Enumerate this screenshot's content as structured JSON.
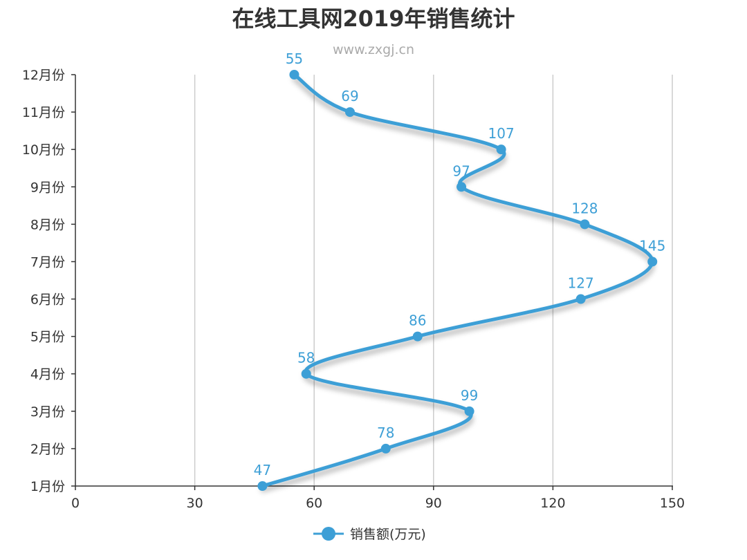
{
  "chart_data": {
    "type": "line",
    "title": "在线工具网2019年销售统计",
    "subtitle": "www.zxgj.cn",
    "orientation": "horizontal",
    "smooth": true,
    "categories": [
      "1月份",
      "2月份",
      "3月份",
      "4月份",
      "5月份",
      "6月份",
      "7月份",
      "8月份",
      "9月份",
      "10月份",
      "11月份",
      "12月份"
    ],
    "series": [
      {
        "name": "销售额(万元)",
        "values": [
          47,
          78,
          99,
          58,
          86,
          127,
          145,
          128,
          97,
          107,
          69,
          55
        ]
      }
    ],
    "xlim": [
      0,
      150
    ],
    "xticks": [
      0,
      30,
      60,
      90,
      120,
      150
    ],
    "xtick_labels": [
      "0",
      "30",
      "60",
      "90",
      "120",
      "150"
    ],
    "grid": true,
    "legend": "bottom-center",
    "colors": {
      "series": "#3d9fd6",
      "axis": "#333333",
      "grid": "#cccccc"
    }
  }
}
